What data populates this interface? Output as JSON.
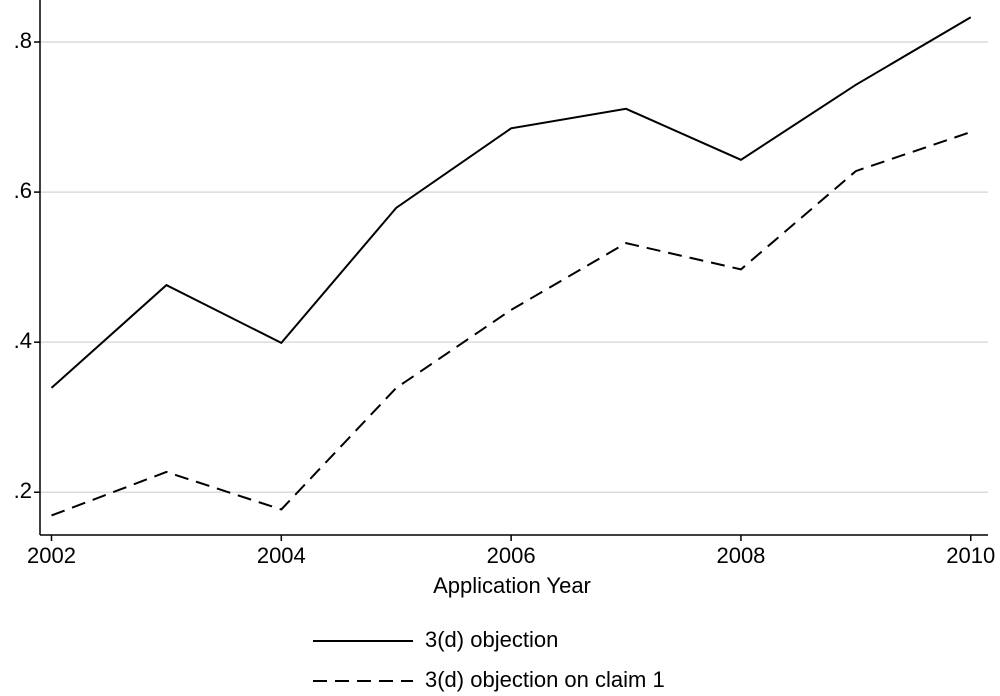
{
  "chart_data": {
    "type": "line",
    "x_label": "Application Year",
    "x": [
      2002,
      2003,
      2004,
      2005,
      2006,
      2007,
      2008,
      2009,
      2010
    ],
    "series": [
      {
        "name": "3(d) objection",
        "color": "#000000",
        "dash": false,
        "values": [
          0.339,
          0.476,
          0.399,
          0.579,
          0.685,
          0.711,
          0.643,
          0.743,
          0.833
        ]
      },
      {
        "name": "3(d) objection on claim 1",
        "color": "#000000",
        "dash": true,
        "values": [
          0.169,
          0.227,
          0.177,
          0.339,
          0.443,
          0.532,
          0.497,
          0.628,
          0.68
        ]
      }
    ],
    "xlim": [
      2001.9,
      2010.15
    ],
    "xticks": [
      2002,
      2004,
      2006,
      2008,
      2010
    ],
    "ylim": [
      0.143,
      0.856
    ],
    "yticks": [
      {
        "value": 0.2,
        "label": ".2"
      },
      {
        "value": 0.4,
        "label": ".4"
      },
      {
        "value": 0.6,
        "label": ".6"
      },
      {
        "value": 0.8,
        "label": ".8"
      }
    ],
    "grid": true,
    "legend": "bottom"
  }
}
